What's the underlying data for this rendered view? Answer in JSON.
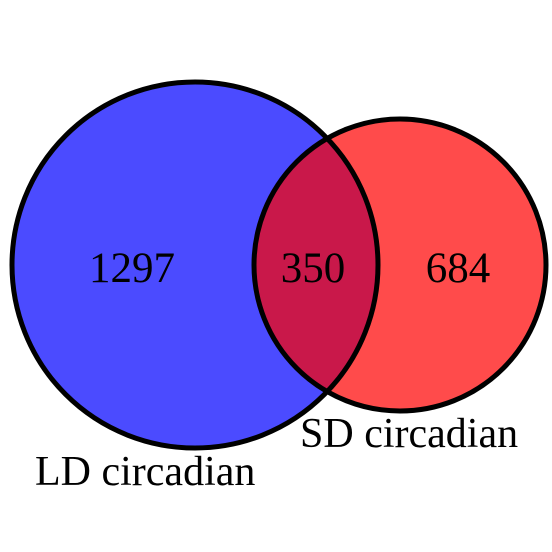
{
  "sets": [
    {
      "label": "LD circadian",
      "only_count": "1297",
      "color": "#4b4bff"
    },
    {
      "label": "SD circadian",
      "only_count": "684",
      "color": "#ff4b4b"
    }
  ],
  "intersection": {
    "count": "350",
    "color": "#c9184a"
  },
  "outline_color": "#000000"
}
